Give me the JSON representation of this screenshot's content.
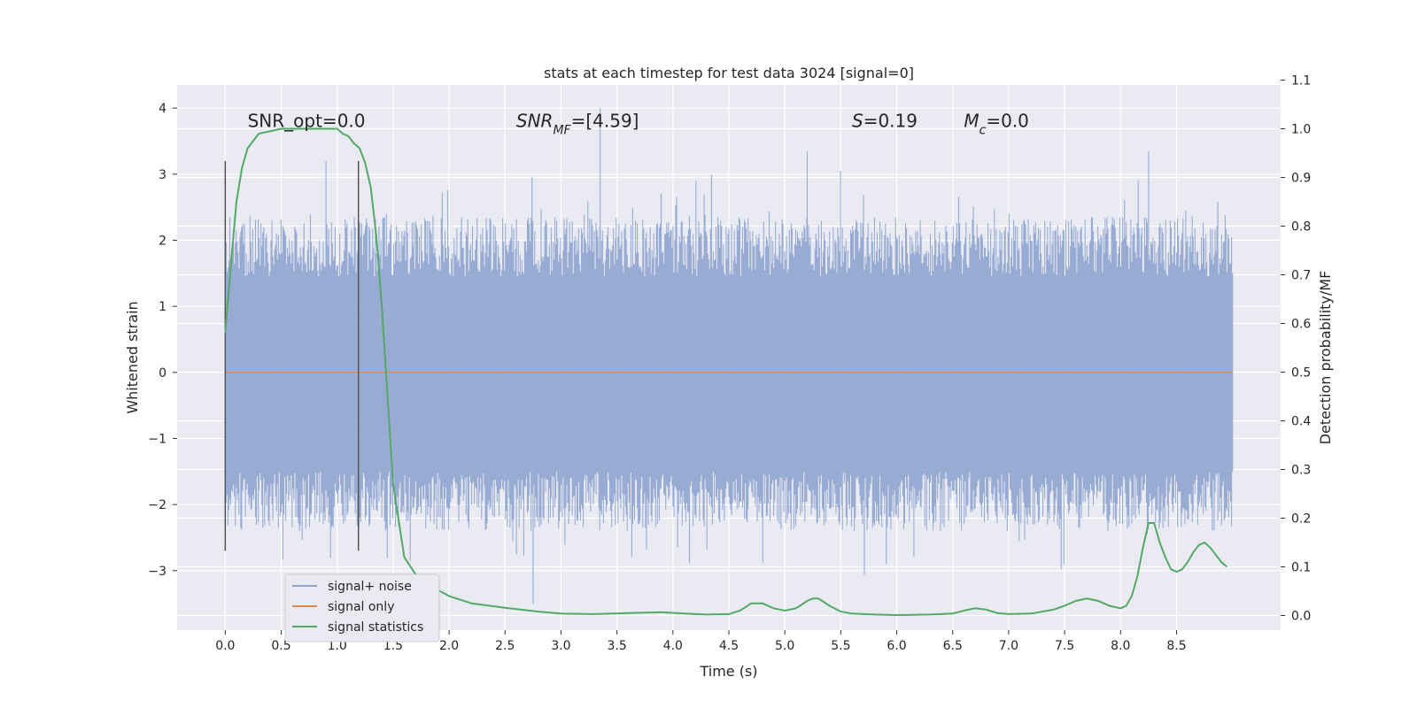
{
  "chart_data": {
    "type": "line",
    "title": "stats at each timestep for test data 3024 [signal=0]",
    "xlabel": "Time (s)",
    "ylabel": "Whitened strain",
    "y2label": "Detection probability/MF",
    "xlim": [
      -0.43,
      9.43
    ],
    "ylim": [
      -3.9,
      4.35
    ],
    "y2lim": [
      -0.03,
      1.09
    ],
    "xticks": [
      "0.0",
      "0.5",
      "1.0",
      "1.5",
      "2.0",
      "2.5",
      "3.0",
      "3.5",
      "4.0",
      "4.5",
      "5.0",
      "5.5",
      "6.0",
      "6.5",
      "7.0",
      "7.5",
      "8.0",
      "8.5"
    ],
    "yticks": [
      "4",
      "3",
      "2",
      "1",
      "0",
      "−1",
      "−2",
      "−3"
    ],
    "y2ticks": [
      "1.1",
      "1.0",
      "0.9",
      "0.8",
      "0.7",
      "0.6",
      "0.5",
      "0.4",
      "0.3",
      "0.2",
      "0.1",
      "0.0"
    ],
    "colors": {
      "noise": "#8fa5cf",
      "signal_only": "#dd8452",
      "statistics": "#55a868",
      "vline": "#555555",
      "plot_bg": "#eaeaf2",
      "grid": "#ffffff"
    },
    "noise_envelope": {
      "t_start": 0.0,
      "t_end": 9.0,
      "typical_min": -1.5,
      "typical_max": 1.45,
      "spike_max": 4.0,
      "spike_min": -3.5
    },
    "signal_only": {
      "y": 0.0
    },
    "vlines": [
      {
        "x": 0.0,
        "ymin": -2.7,
        "ymax": 3.2
      },
      {
        "x": 1.19,
        "ymin": -2.7,
        "ymax": 3.2
      }
    ],
    "series": [
      {
        "name": "signal statistics",
        "axis": "right",
        "x": [
          0.0,
          0.05,
          0.1,
          0.15,
          0.2,
          0.3,
          0.5,
          0.7,
          0.9,
          1.0,
          1.05,
          1.1,
          1.15,
          1.2,
          1.25,
          1.3,
          1.35,
          1.4,
          1.45,
          1.5,
          1.6,
          1.7,
          1.8,
          2.0,
          2.2,
          2.5,
          2.8,
          3.0,
          3.3,
          3.6,
          3.9,
          4.1,
          4.3,
          4.5,
          4.6,
          4.7,
          4.8,
          4.9,
          5.0,
          5.1,
          5.2,
          5.25,
          5.3,
          5.4,
          5.5,
          5.6,
          5.8,
          6.0,
          6.3,
          6.5,
          6.6,
          6.7,
          6.8,
          6.9,
          7.0,
          7.2,
          7.4,
          7.5,
          7.6,
          7.7,
          7.8,
          7.9,
          8.0,
          8.05,
          8.1,
          8.15,
          8.2,
          8.25,
          8.3,
          8.35,
          8.4,
          8.45,
          8.5,
          8.55,
          8.6,
          8.65,
          8.7,
          8.75,
          8.8,
          8.85,
          8.9,
          8.95
        ],
        "y": [
          0.58,
          0.72,
          0.85,
          0.92,
          0.96,
          0.99,
          1.0,
          1.0,
          1.0,
          1.0,
          0.99,
          0.985,
          0.97,
          0.96,
          0.93,
          0.88,
          0.78,
          0.63,
          0.45,
          0.27,
          0.12,
          0.085,
          0.065,
          0.04,
          0.025,
          0.016,
          0.008,
          0.004,
          0.003,
          0.005,
          0.007,
          0.004,
          0.002,
          0.003,
          0.01,
          0.025,
          0.025,
          0.015,
          0.01,
          0.015,
          0.03,
          0.035,
          0.035,
          0.02,
          0.008,
          0.004,
          0.002,
          0.001,
          0.002,
          0.004,
          0.01,
          0.015,
          0.012,
          0.005,
          0.003,
          0.004,
          0.012,
          0.02,
          0.03,
          0.035,
          0.03,
          0.02,
          0.015,
          0.02,
          0.04,
          0.08,
          0.14,
          0.19,
          0.19,
          0.15,
          0.12,
          0.095,
          0.09,
          0.095,
          0.11,
          0.13,
          0.145,
          0.15,
          0.14,
          0.125,
          0.11,
          0.1
        ]
      }
    ],
    "annotations": [
      {
        "name": "snr-opt-annotation",
        "x": 0.2,
        "y2": 1.0,
        "text": "SNR_opt=0.0"
      },
      {
        "name": "snr-mf-annotation",
        "x": 2.6,
        "y2": 1.0,
        "text": "SNR_MF=[4.59]"
      },
      {
        "name": "s-annotation",
        "x": 5.6,
        "y2": 1.0,
        "text": "S=0.19"
      },
      {
        "name": "mc-annotation",
        "x": 6.6,
        "y2": 1.0,
        "text": "M_c=0.0"
      }
    ],
    "legend": {
      "position": "lower-left",
      "entries": [
        {
          "label": "signal+ noise",
          "color": "#8fa5cf"
        },
        {
          "label": "signal only",
          "color": "#dd8452"
        },
        {
          "label": "signal statistics",
          "color": "#55a868"
        }
      ]
    }
  }
}
